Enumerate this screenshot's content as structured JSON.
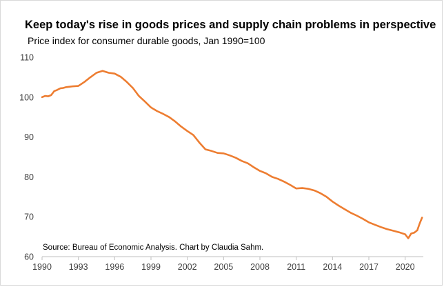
{
  "chart_data": {
    "type": "line",
    "title": "Keep today's rise in goods prices and supply chain problems in perspective",
    "subtitle": "Price index for consumer durable goods, Jan 1990=100",
    "source": "Source: Bureau of Economic Analysis. Chart by Claudia Sahm.",
    "xlabel": "",
    "ylabel": "",
    "xlim": [
      1990,
      2021.5
    ],
    "ylim": [
      60,
      110
    ],
    "x_ticks": [
      1990,
      1993,
      1996,
      1999,
      2002,
      2005,
      2008,
      2011,
      2014,
      2017,
      2020
    ],
    "x_tick_labels": [
      "1990",
      "1993",
      "1996",
      "1999",
      "2002",
      "2005",
      "2008",
      "2011",
      "2014",
      "2017",
      "2020"
    ],
    "y_ticks": [
      60,
      70,
      80,
      90,
      100,
      110
    ],
    "y_tick_labels": [
      "60",
      "70",
      "80",
      "90",
      "100",
      "110"
    ],
    "grid": false,
    "legend": "none",
    "color": "#ED7D31",
    "series": [
      {
        "x": [
          1990,
          1990.25,
          1990.5,
          1990.75,
          1991,
          1991.25,
          1991.5,
          1991.75,
          1992,
          1992.5,
          1993,
          1993.5,
          1994,
          1994.5,
          1995,
          1995.5,
          1996,
          1996.5,
          1997,
          1997.5,
          1998,
          1998.5,
          1999,
          1999.5,
          2000,
          2000.5,
          2001,
          2001.5,
          2002,
          2002.5,
          2003,
          2003.5,
          2004,
          2004.5,
          2005,
          2005.5,
          2006,
          2006.5,
          2007,
          2007.5,
          2008,
          2008.5,
          2009,
          2009.5,
          2010,
          2010.5,
          2011,
          2011.5,
          2012,
          2012.5,
          2013,
          2013.5,
          2014,
          2014.5,
          2015,
          2015.5,
          2016,
          2016.5,
          2017,
          2017.5,
          2018,
          2018.5,
          2019,
          2019.5,
          2020,
          2020.25,
          2020.5,
          2020.75,
          2021,
          2021.2,
          2021.4
        ],
        "values": [
          100,
          100.3,
          100.2,
          100.5,
          101.5,
          101.8,
          102.2,
          102.3,
          102.5,
          102.7,
          102.8,
          103.8,
          105,
          106.1,
          106.6,
          106.1,
          105.9,
          105.1,
          103.8,
          102.3,
          100.3,
          98.9,
          97.4,
          96.5,
          95.8,
          95.0,
          93.9,
          92.6,
          91.5,
          90.5,
          88.6,
          86.9,
          86.5,
          86.0,
          85.9,
          85.4,
          84.8,
          84.0,
          83.4,
          82.4,
          81.5,
          80.9,
          80.0,
          79.5,
          78.8,
          78.0,
          77.1,
          77.2,
          77.0,
          76.6,
          75.9,
          75.0,
          73.8,
          72.8,
          71.9,
          71.0,
          70.3,
          69.5,
          68.6,
          68.0,
          67.4,
          66.9,
          66.5,
          66.1,
          65.6,
          64.6,
          65.8,
          66.0,
          66.6,
          68.3,
          69.8
        ]
      }
    ]
  }
}
